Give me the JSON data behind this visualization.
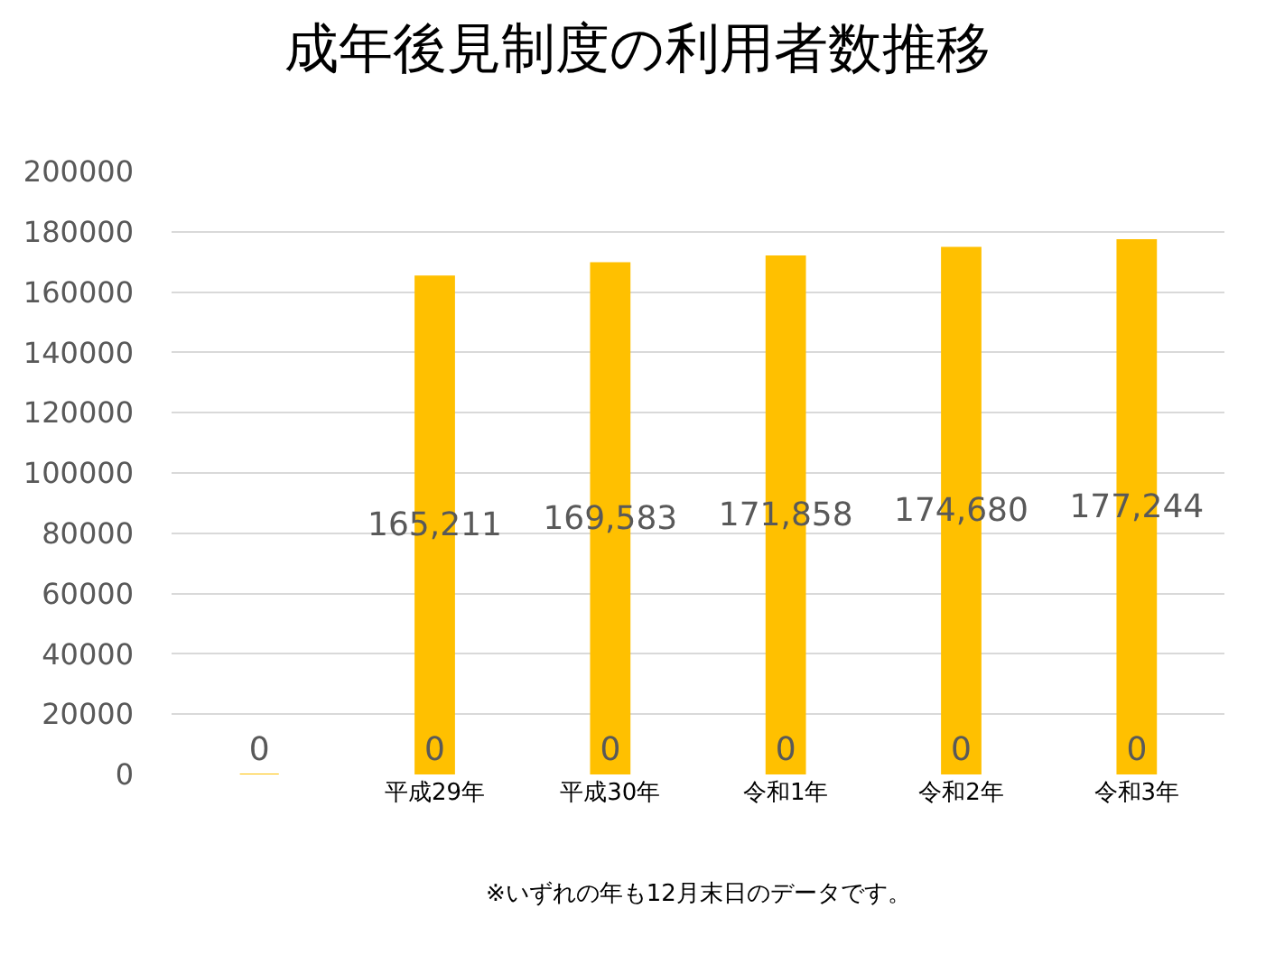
{
  "chart_data": {
    "type": "bar",
    "title": "成年後見制度の利用者数推移",
    "categories": [
      null,
      "平成29年",
      "平成30年",
      "令和1年",
      "令和2年",
      "令和3年"
    ],
    "series": [
      {
        "color": "#ffc000",
        "values": [
          0,
          165211,
          169583,
          171858,
          174680,
          177244
        ],
        "value_labels": [
          null,
          "165,211",
          "169,583",
          "171,858",
          "174,680",
          "177,244"
        ]
      },
      {
        "color": "#ffc000",
        "values": [
          0,
          0,
          0,
          0,
          0,
          0
        ],
        "value_labels": [
          "0",
          "0",
          "0",
          "0",
          "0",
          "0"
        ]
      }
    ],
    "ylim": [
      0,
      200000
    ],
    "yticks": [
      0,
      20000,
      40000,
      60000,
      80000,
      100000,
      120000,
      140000,
      160000,
      180000,
      200000
    ],
    "grid": "y",
    "legend": false,
    "annotations": [
      "※いずれの年も12月末日のデータです。"
    ]
  }
}
